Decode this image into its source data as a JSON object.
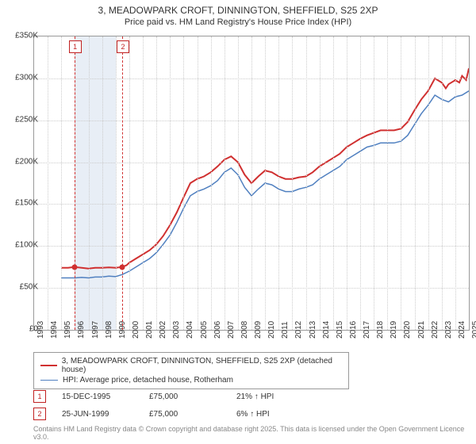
{
  "title_line1": "3, MEADOWPARK CROFT, DINNINGTON, SHEFFIELD, S25 2XP",
  "title_line2": "Price paid vs. HM Land Registry's House Price Index (HPI)",
  "chart": {
    "type": "line",
    "background_color": "#ffffff",
    "grid_color": "#cccccc",
    "border_color": "#999999",
    "shade_color": "#e8eef6",
    "x_min": 1993,
    "x_max": 2025,
    "y_min": 0,
    "y_max": 350000,
    "y_ticks": [
      0,
      50000,
      100000,
      150000,
      200000,
      250000,
      300000,
      350000
    ],
    "y_tick_labels": [
      "£0",
      "£50K",
      "£100K",
      "£150K",
      "£200K",
      "£250K",
      "£300K",
      "£350K"
    ],
    "x_ticks": [
      1993,
      1994,
      1995,
      1996,
      1997,
      1998,
      1999,
      2000,
      2001,
      2002,
      2003,
      2004,
      2005,
      2006,
      2007,
      2008,
      2009,
      2010,
      2011,
      2012,
      2013,
      2014,
      2015,
      2016,
      2017,
      2018,
      2019,
      2020,
      2021,
      2022,
      2023,
      2024,
      2025
    ],
    "label_fontsize": 10,
    "shade_years": [
      1996,
      1997,
      1998
    ],
    "markers": [
      {
        "num": "1",
        "year": 1995.96,
        "y": 75000
      },
      {
        "num": "2",
        "year": 1999.48,
        "y": 75000
      }
    ],
    "series": [
      {
        "name": "price_paid",
        "label": "3, MEADOWPARK CROFT, DINNINGTON, SHEFFIELD, S25 2XP (detached house)",
        "color": "#d03030",
        "line_width": 2,
        "data": [
          [
            1995,
            74000
          ],
          [
            1995.5,
            74000
          ],
          [
            1995.96,
            75000
          ],
          [
            1996.5,
            74000
          ],
          [
            1997,
            73000
          ],
          [
            1997.5,
            74000
          ],
          [
            1998,
            74000
          ],
          [
            1998.5,
            74500
          ],
          [
            1999,
            74000
          ],
          [
            1999.48,
            75000
          ],
          [
            1999.8,
            77000
          ],
          [
            2000,
            80000
          ],
          [
            2000.5,
            85000
          ],
          [
            2001,
            90000
          ],
          [
            2001.5,
            95000
          ],
          [
            2002,
            102000
          ],
          [
            2002.5,
            112000
          ],
          [
            2003,
            125000
          ],
          [
            2003.5,
            140000
          ],
          [
            2004,
            158000
          ],
          [
            2004.5,
            175000
          ],
          [
            2005,
            180000
          ],
          [
            2005.5,
            183000
          ],
          [
            2006,
            188000
          ],
          [
            2006.5,
            195000
          ],
          [
            2007,
            203000
          ],
          [
            2007.5,
            207000
          ],
          [
            2008,
            200000
          ],
          [
            2008.5,
            185000
          ],
          [
            2009,
            175000
          ],
          [
            2009.5,
            183000
          ],
          [
            2010,
            190000
          ],
          [
            2010.5,
            188000
          ],
          [
            2011,
            183000
          ],
          [
            2011.5,
            180000
          ],
          [
            2012,
            180000
          ],
          [
            2012.5,
            182000
          ],
          [
            2013,
            183000
          ],
          [
            2013.5,
            188000
          ],
          [
            2014,
            195000
          ],
          [
            2014.5,
            200000
          ],
          [
            2015,
            205000
          ],
          [
            2015.5,
            210000
          ],
          [
            2016,
            218000
          ],
          [
            2016.5,
            223000
          ],
          [
            2017,
            228000
          ],
          [
            2017.5,
            232000
          ],
          [
            2018,
            235000
          ],
          [
            2018.5,
            238000
          ],
          [
            2019,
            238000
          ],
          [
            2019.5,
            238000
          ],
          [
            2020,
            240000
          ],
          [
            2020.5,
            248000
          ],
          [
            2021,
            262000
          ],
          [
            2021.5,
            275000
          ],
          [
            2022,
            285000
          ],
          [
            2022.5,
            300000
          ],
          [
            2023,
            295000
          ],
          [
            2023.3,
            288000
          ],
          [
            2023.5,
            293000
          ],
          [
            2024,
            298000
          ],
          [
            2024.3,
            295000
          ],
          [
            2024.5,
            303000
          ],
          [
            2024.8,
            298000
          ],
          [
            2025,
            312000
          ]
        ]
      },
      {
        "name": "hpi",
        "label": "HPI: Average price, detached house, Rotherham",
        "color": "#5080c0",
        "line_width": 1.5,
        "data": [
          [
            1995,
            62000
          ],
          [
            1995.5,
            62000
          ],
          [
            1996,
            62000
          ],
          [
            1996.5,
            62500
          ],
          [
            1997,
            62000
          ],
          [
            1997.5,
            63000
          ],
          [
            1998,
            63000
          ],
          [
            1998.5,
            64000
          ],
          [
            1999,
            63500
          ],
          [
            1999.5,
            66000
          ],
          [
            2000,
            70000
          ],
          [
            2000.5,
            75000
          ],
          [
            2001,
            80000
          ],
          [
            2001.5,
            85000
          ],
          [
            2002,
            92000
          ],
          [
            2002.5,
            102000
          ],
          [
            2003,
            113000
          ],
          [
            2003.5,
            128000
          ],
          [
            2004,
            145000
          ],
          [
            2004.5,
            160000
          ],
          [
            2005,
            165000
          ],
          [
            2005.5,
            168000
          ],
          [
            2006,
            172000
          ],
          [
            2006.5,
            178000
          ],
          [
            2007,
            188000
          ],
          [
            2007.5,
            193000
          ],
          [
            2008,
            185000
          ],
          [
            2008.5,
            170000
          ],
          [
            2009,
            160000
          ],
          [
            2009.5,
            168000
          ],
          [
            2010,
            175000
          ],
          [
            2010.5,
            173000
          ],
          [
            2011,
            168000
          ],
          [
            2011.5,
            165000
          ],
          [
            2012,
            165000
          ],
          [
            2012.5,
            168000
          ],
          [
            2013,
            170000
          ],
          [
            2013.5,
            173000
          ],
          [
            2014,
            180000
          ],
          [
            2014.5,
            185000
          ],
          [
            2015,
            190000
          ],
          [
            2015.5,
            195000
          ],
          [
            2016,
            203000
          ],
          [
            2016.5,
            208000
          ],
          [
            2017,
            213000
          ],
          [
            2017.5,
            218000
          ],
          [
            2018,
            220000
          ],
          [
            2018.5,
            223000
          ],
          [
            2019,
            223000
          ],
          [
            2019.5,
            223000
          ],
          [
            2020,
            225000
          ],
          [
            2020.5,
            232000
          ],
          [
            2021,
            245000
          ],
          [
            2021.5,
            258000
          ],
          [
            2022,
            268000
          ],
          [
            2022.5,
            280000
          ],
          [
            2023,
            275000
          ],
          [
            2023.5,
            272000
          ],
          [
            2024,
            278000
          ],
          [
            2024.5,
            280000
          ],
          [
            2025,
            285000
          ]
        ]
      }
    ]
  },
  "legend": {
    "border_color": "#999999"
  },
  "sales": [
    {
      "num": "1",
      "date": "15-DEC-1995",
      "price": "£75,000",
      "delta": "21% ↑ HPI"
    },
    {
      "num": "2",
      "date": "25-JUN-1999",
      "price": "£75,000",
      "delta": "6% ↑ HPI"
    }
  ],
  "license_text": "Contains HM Land Registry data © Crown copyright and database right 2025. This data is licensed under the Open Government Licence v3.0."
}
